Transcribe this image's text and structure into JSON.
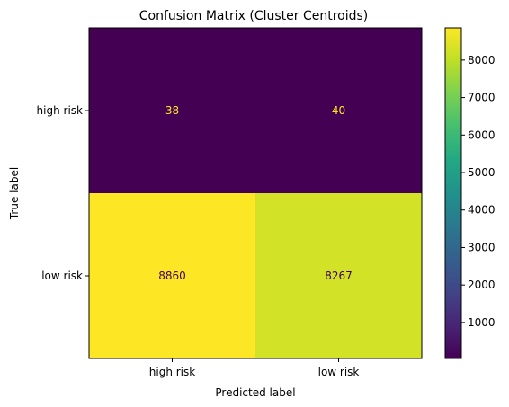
{
  "chart_data": {
    "type": "heatmap",
    "title": "Confusion Matrix (Cluster Centroids)",
    "xlabel": "Predicted label",
    "ylabel": "True label",
    "x_categories": [
      "high risk",
      "low risk"
    ],
    "y_categories": [
      "high risk",
      "low risk"
    ],
    "values": [
      [
        38,
        40
      ],
      [
        8860,
        8267
      ]
    ],
    "colormap": "viridis",
    "colorbar": {
      "ticks": [
        1000,
        2000,
        3000,
        4000,
        5000,
        6000,
        7000,
        8000
      ],
      "tick_labels": [
        "1000",
        "2000",
        "3000",
        "4000",
        "5000",
        "6000",
        "7000",
        "8000"
      ],
      "range": [
        38,
        8860
      ]
    },
    "grid": false
  }
}
